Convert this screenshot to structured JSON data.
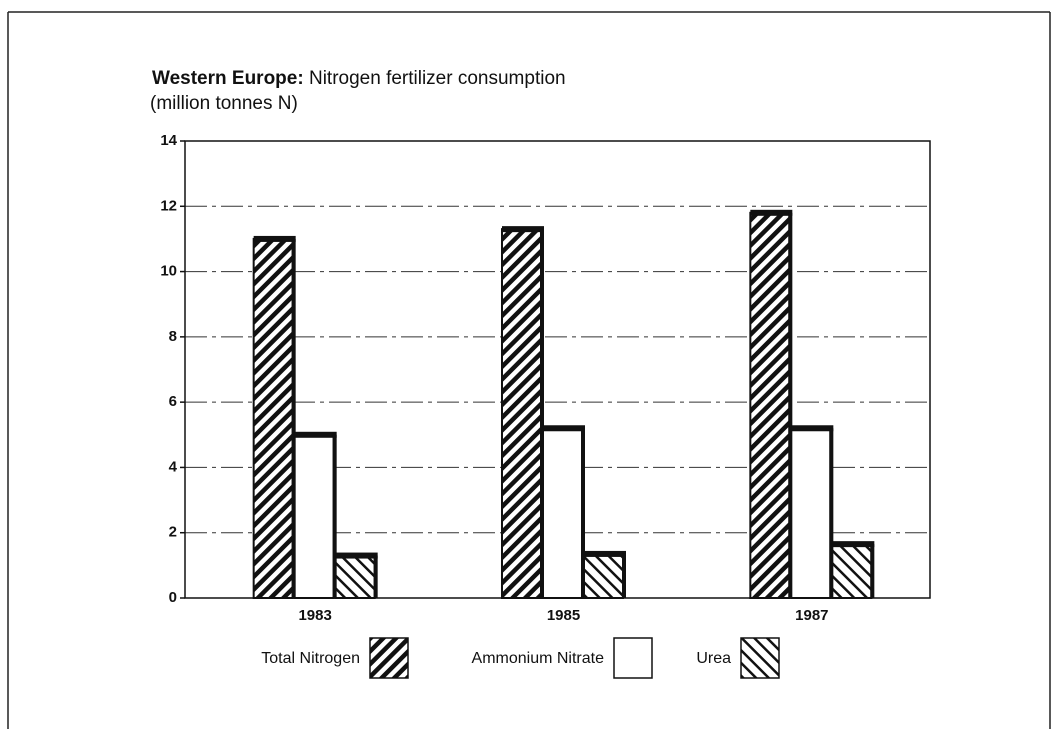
{
  "chart_data": {
    "type": "bar",
    "title": [
      "Western Europe:",
      "Nitrogen fertilizer consumption"
    ],
    "subtitle": "(million tonnes N)",
    "categories": [
      "1983",
      "1985",
      "1987"
    ],
    "series": [
      {
        "name": "Total Nitrogen",
        "color": "#ffffff",
        "hatch": "forward",
        "values": [
          11,
          11.3,
          11.8
        ]
      },
      {
        "name": "Ammonium Nitrate",
        "color": "#ffffff",
        "hatch": "none",
        "values": [
          5,
          5.2,
          5.2
        ]
      },
      {
        "name": "Urea",
        "color": "#ffffff",
        "hatch": "backward",
        "values": [
          1.3,
          1.35,
          1.65
        ]
      }
    ],
    "ylim": [
      0,
      14
    ],
    "yticks": [
      0,
      2,
      4,
      6,
      8,
      10,
      12,
      14
    ],
    "grid": true,
    "legend": "bottom"
  }
}
